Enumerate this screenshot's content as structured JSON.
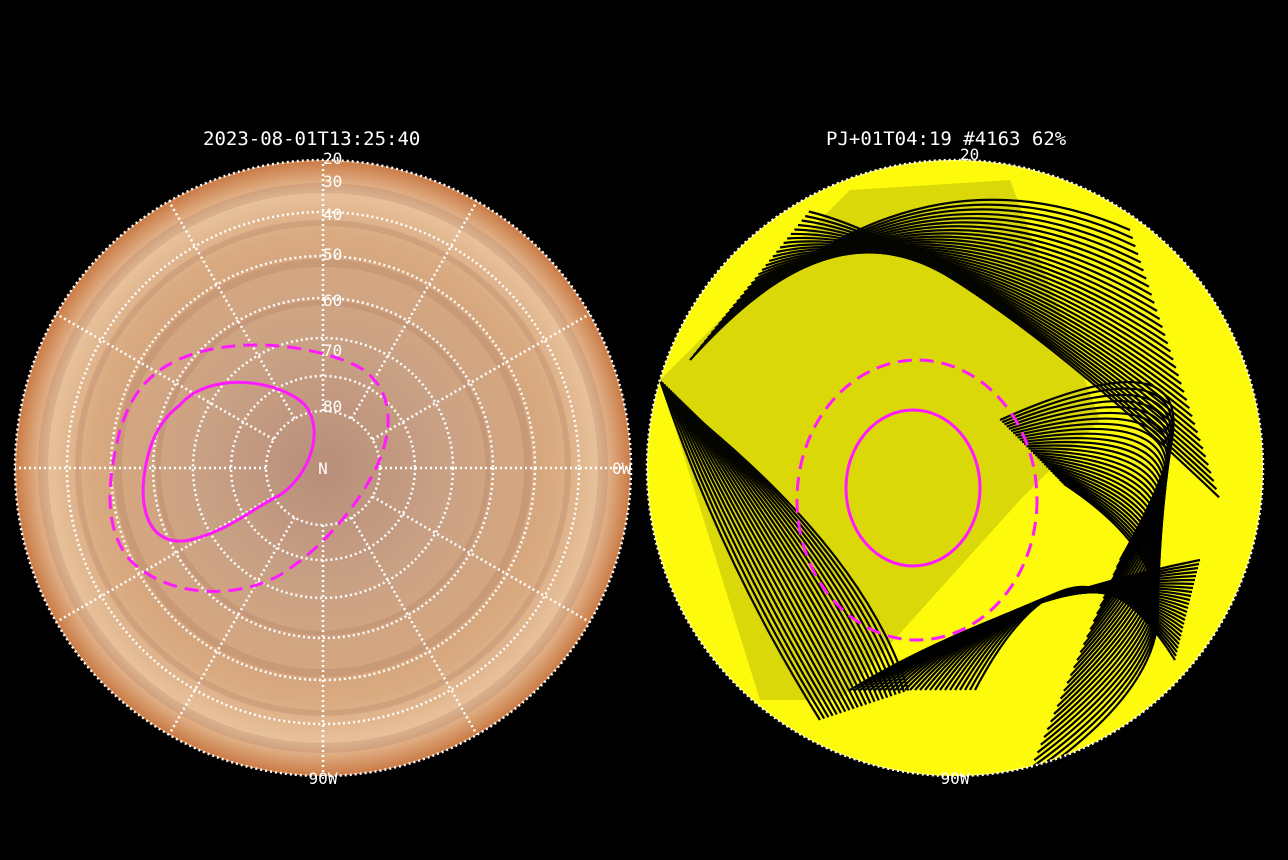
{
  "left_panel": {
    "title": "2023-08-01T13:25:40",
    "pole_label": "N",
    "lat_labels": [
      "20",
      "30",
      "40",
      "50",
      "60",
      "70",
      "80"
    ],
    "lon_labels": {
      "right": "0W",
      "bottom": "90W"
    },
    "colors": {
      "grid": "#ffffff",
      "oval": "#ff1aff",
      "planet": "#c8946a"
    }
  },
  "right_panel": {
    "title": "PJ+01T04:19 #4163 62%",
    "lat_labels": [
      "20"
    ],
    "lon_labels": {
      "bottom": "90W"
    },
    "colors": {
      "footprint_fill": "#ffff00",
      "footprint_edge": "#000000",
      "oval": "#ff1aff",
      "planet": "#e6b89a"
    }
  }
}
